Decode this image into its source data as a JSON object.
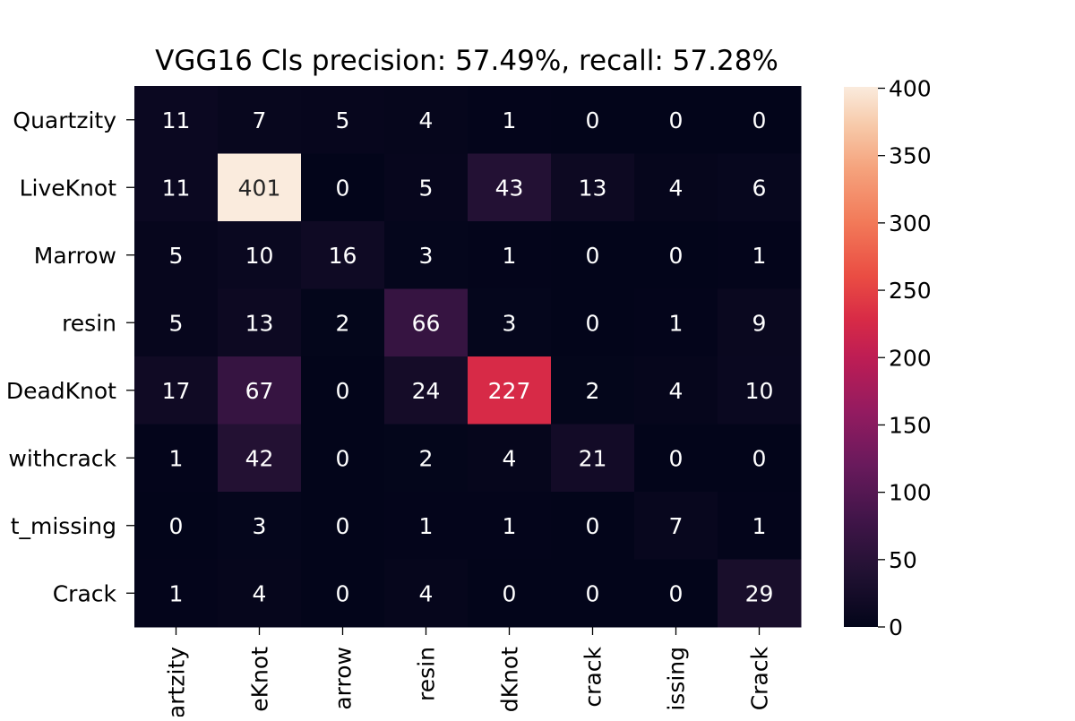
{
  "chart_data": {
    "type": "heatmap",
    "title": "VGG16 Cls precision: 57.49%, recall: 57.28%",
    "xlabel": "",
    "ylabel": "",
    "row_labels": [
      "Quartzity",
      "LiveKnot",
      "Marrow",
      "resin",
      "DeadKnot",
      "withcrack",
      "t_missing",
      "Crack"
    ],
    "col_labels": [
      "artzity",
      "eKnot",
      "arrow",
      "resin",
      "dKnot",
      "crack",
      "issing",
      "Crack"
    ],
    "matrix": [
      [
        11,
        7,
        5,
        4,
        1,
        0,
        0,
        0
      ],
      [
        11,
        401,
        0,
        5,
        43,
        13,
        4,
        6
      ],
      [
        5,
        10,
        16,
        3,
        1,
        0,
        0,
        1
      ],
      [
        5,
        13,
        2,
        66,
        3,
        0,
        1,
        9
      ],
      [
        17,
        67,
        0,
        24,
        227,
        2,
        4,
        10
      ],
      [
        1,
        42,
        0,
        2,
        4,
        21,
        0,
        0
      ],
      [
        0,
        3,
        0,
        1,
        1,
        0,
        7,
        1
      ],
      [
        1,
        4,
        0,
        4,
        0,
        0,
        0,
        29
      ]
    ],
    "vmin": 0,
    "vmax": 401,
    "colormap": "rocket",
    "colorbar_ticks": [
      0,
      50,
      100,
      150,
      200,
      250,
      300,
      350,
      400
    ],
    "grid": false,
    "annotations": "cell values"
  }
}
